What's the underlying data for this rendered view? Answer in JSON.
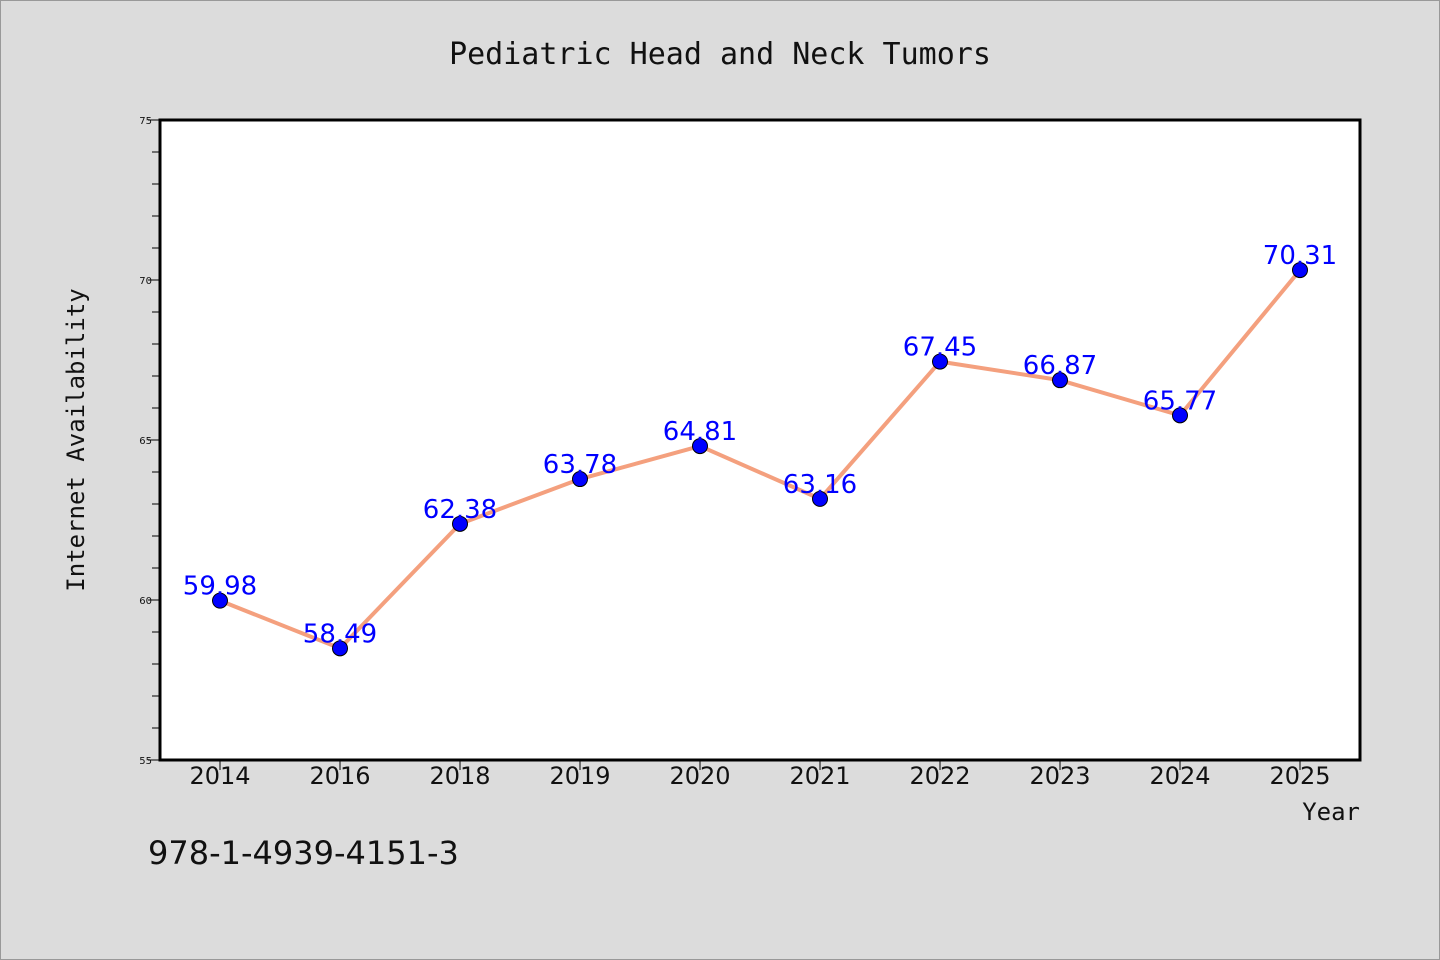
{
  "chart_data": {
    "type": "line",
    "title": "Pediatric Head and Neck Tumors",
    "xlabel": "Year",
    "ylabel": "Internet Availability",
    "categories": [
      "2014",
      "2016",
      "2018",
      "2019",
      "2020",
      "2021",
      "2022",
      "2023",
      "2024",
      "2025"
    ],
    "values": [
      59.98,
      58.49,
      62.38,
      63.78,
      64.81,
      63.16,
      67.45,
      66.87,
      65.77,
      70.31
    ],
    "data_labels": [
      "59.98",
      "58.49",
      "62.38",
      "63.78",
      "64.81",
      "63.16",
      "67.45",
      "66.87",
      "65.77",
      "70.31"
    ],
    "ylim": [
      55,
      75
    ],
    "yticks": [
      55,
      60,
      65,
      70,
      75
    ],
    "ytick_labels": [
      "55",
      "60",
      "65",
      "70",
      "75"
    ],
    "grid": false,
    "legend": "none",
    "line_color": "#f4a07e",
    "marker_color": "#0000ff",
    "label_color": "#0000ff"
  },
  "annotation": "978-1-4939-4151-3",
  "colors": {
    "background": "#dcdcdc",
    "plot_background": "#ffffff",
    "frame": "#000000"
  }
}
